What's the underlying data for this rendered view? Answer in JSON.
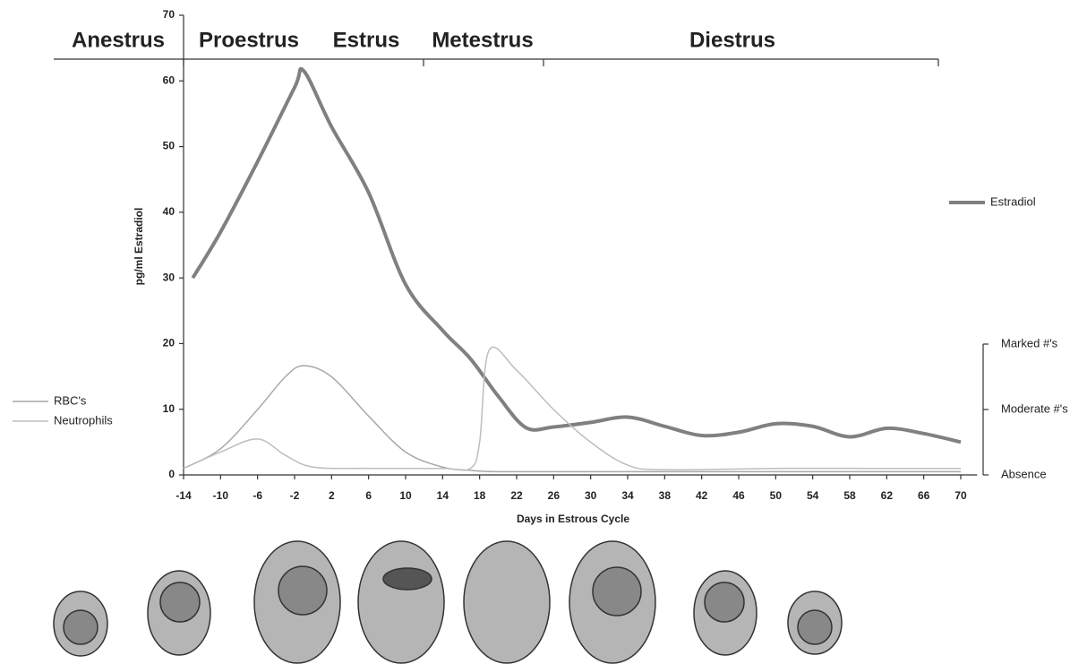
{
  "chart_data": {
    "type": "line",
    "phases": [
      "Anestrus",
      "Proestrus",
      "Estrus",
      "Metestrus",
      "Diestrus"
    ],
    "ylabel": "pg/ml Estradiol",
    "xlabel": "Days in Estrous Cycle",
    "xlim": [
      -14,
      71
    ],
    "xticks": [
      -14,
      -10,
      -6,
      -2,
      2,
      6,
      10,
      14,
      18,
      22,
      26,
      30,
      34,
      38,
      42,
      46,
      50,
      54,
      58,
      62,
      66,
      70
    ],
    "ylim": [
      0,
      70
    ],
    "yticks": [
      0,
      10,
      20,
      30,
      40,
      50,
      60,
      70
    ],
    "y2lim": [
      0,
      2
    ],
    "y2ticks": [
      {
        "value": 0,
        "label": "Absence"
      },
      {
        "value": 1,
        "label": "Moderate #'s"
      },
      {
        "value": 2,
        "label": "Marked #'s"
      }
    ],
    "series": [
      {
        "name": "Estradiol",
        "color": "#808080",
        "x": [
          -13,
          -10,
          -6,
          -2,
          -1,
          2,
          6,
          10,
          14,
          17,
          20,
          23,
          26,
          30,
          34,
          38,
          42,
          46,
          50,
          54,
          58,
          62,
          66,
          70
        ],
        "values": [
          30,
          37,
          47.7,
          59,
          61.5,
          53,
          43,
          29,
          22,
          17.7,
          12,
          7.2,
          7.3,
          8,
          8.8,
          7.4,
          6,
          6.5,
          7.8,
          7.4,
          5.8,
          7.1,
          6.3,
          5
        ]
      },
      {
        "name": "RBC's",
        "color": "#a8a8a8",
        "axis": "y2",
        "x": [
          -14,
          -10,
          -6,
          -3,
          -1,
          2,
          6,
          10,
          14,
          17,
          20,
          30,
          40,
          50,
          60,
          70
        ],
        "values": [
          0.1,
          0.4,
          1.0,
          1.5,
          1.67,
          1.5,
          0.9,
          0.35,
          0.12,
          0.07,
          0.05,
          0.05,
          0.05,
          0.05,
          0.05,
          0.05
        ]
      },
      {
        "name": "Neutrophils",
        "color": "#bdbdbd",
        "axis": "y2",
        "x": [
          -14,
          -10,
          -6,
          -3,
          0,
          6,
          14,
          17,
          18,
          19,
          22,
          26,
          30,
          34,
          38,
          50,
          60,
          70
        ],
        "values": [
          0.1,
          0.35,
          0.55,
          0.3,
          0.12,
          0.1,
          0.1,
          0.1,
          0.5,
          1.9,
          1.6,
          1.0,
          0.5,
          0.15,
          0.08,
          0.1,
          0.1,
          0.1
        ]
      }
    ]
  }
}
